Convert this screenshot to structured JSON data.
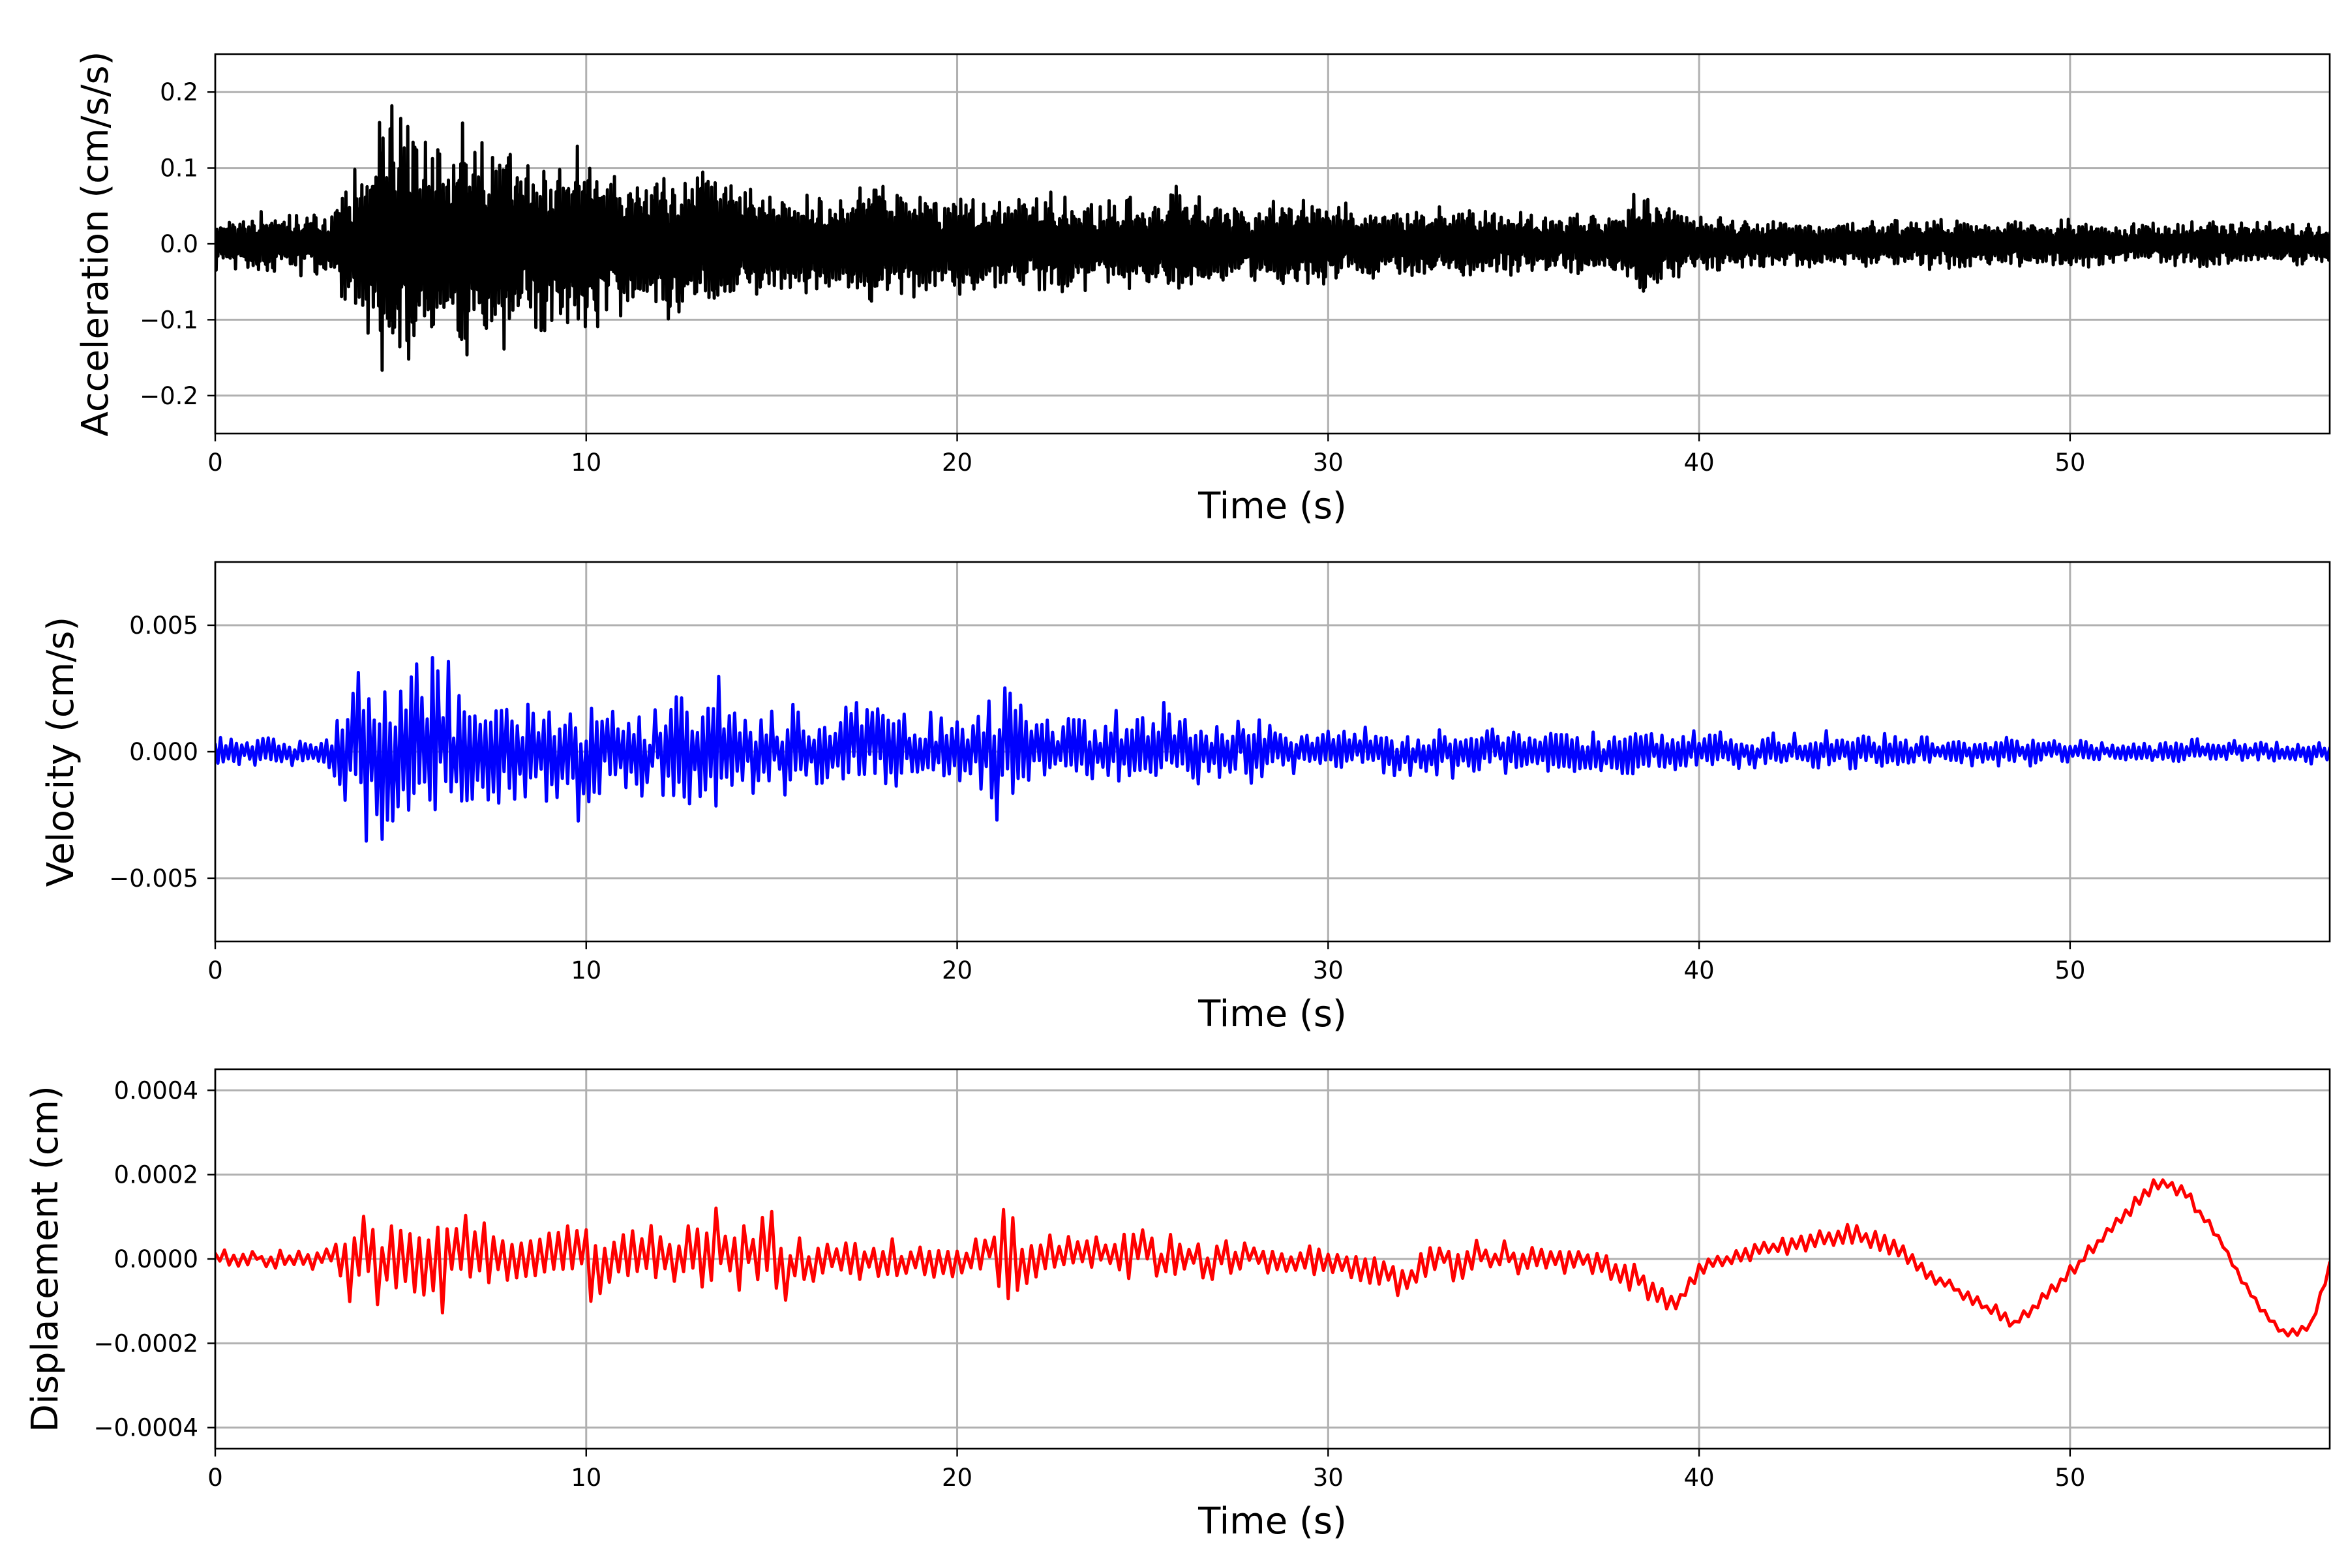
{
  "chart_data": [
    {
      "type": "line",
      "xlabel": "Time (s)",
      "ylabel": "Acceleration (cm/s/s)",
      "xlim": [
        0,
        57
      ],
      "ylim": [
        -0.25,
        0.25
      ],
      "xticks": [
        0,
        10,
        20,
        30,
        40,
        50
      ],
      "yticks": [
        -0.2,
        -0.1,
        0.0,
        0.1,
        0.2
      ],
      "xtick_labels": [
        "0",
        "10",
        "20",
        "30",
        "40",
        "50"
      ],
      "ytick_labels": [
        "−0.2",
        "−0.1",
        "0.0",
        "0.1",
        "0.2"
      ],
      "grid": true,
      "color": "#000000",
      "series": [
        {
          "x": [
            0,
            1,
            2,
            3,
            3.8,
            4.2,
            4.45,
            4.6,
            5.0,
            5.4,
            5.8,
            6.3,
            6.9,
            7.5,
            8.0,
            8.6,
            9.2,
            9.6,
            10.0,
            10.6,
            11.3,
            12.0,
            12.8,
            13.4,
            14.0,
            15.0,
            16.0,
            17.0,
            17.8,
            18.5,
            19.0,
            20.0,
            21.0,
            22.0,
            23.0,
            24.0,
            25.0,
            25.8,
            27.0,
            28.0,
            29.0,
            29.8,
            31.0,
            32.0,
            33.0,
            34.0,
            35.0,
            36.0,
            37.0,
            38.0,
            38.5,
            38.7,
            40.0,
            42.0,
            44.0,
            46.0,
            48.0,
            50.0,
            52.0,
            54.0,
            56.0,
            57.0
          ],
          "amplitude": [
            0.04,
            0.045,
            0.045,
            0.045,
            0.11,
            0.14,
            0.22,
            0.2,
            0.18,
            0.19,
            0.18,
            0.17,
            0.18,
            0.15,
            0.14,
            0.13,
            0.12,
            0.14,
            0.12,
            0.12,
            0.11,
            0.1,
            0.1,
            0.11,
            0.08,
            0.08,
            0.07,
            0.07,
            0.1,
            0.08,
            0.07,
            0.07,
            0.07,
            0.07,
            0.08,
            0.06,
            0.07,
            0.08,
            0.06,
            0.055,
            0.065,
            0.06,
            0.05,
            0.045,
            0.05,
            0.05,
            0.045,
            0.04,
            0.045,
            0.05,
            0.09,
            0.07,
            0.04,
            0.035,
            0.035,
            0.035,
            0.035,
            0.035,
            0.03,
            0.035,
            0.03,
            0.03
          ]
        }
      ]
    },
    {
      "type": "line",
      "xlabel": "Time (s)",
      "ylabel": "Velocity (cm/s)",
      "xlim": [
        0,
        57
      ],
      "ylim": [
        -0.0075,
        0.0075
      ],
      "xticks": [
        0,
        10,
        20,
        30,
        40,
        50
      ],
      "yticks": [
        -0.005,
        0.0,
        0.005
      ],
      "xtick_labels": [
        "0",
        "10",
        "20",
        "30",
        "40",
        "50"
      ],
      "ytick_labels": [
        "−0.005",
        "0.000",
        "0.005"
      ],
      "grid": true,
      "color": "#0000ff",
      "series": [
        {
          "x": [
            0,
            1,
            2,
            3,
            3.7,
            4.0,
            4.4,
            4.8,
            5.2,
            5.8,
            6.4,
            7.0,
            7.8,
            8.6,
            9.5,
            10.0,
            11.0,
            12.0,
            13.0,
            13.4,
            14.0,
            15.0,
            15.5,
            16.5,
            17.5,
            18.5,
            19.5,
            20.5,
            21.4,
            22.0,
            23.0,
            24.0,
            25.0,
            25.6,
            27.0,
            28.0,
            29.0,
            30.0,
            31.0,
            32.0,
            33.0,
            34.0,
            36.0,
            38.0,
            40.0,
            42.0,
            44.0,
            46.0,
            48.0,
            50.0,
            52.0,
            54.0,
            56.0,
            57.0
          ],
          "amplitude": [
            0.0012,
            0.001,
            0.001,
            0.001,
            0.0058,
            0.0065,
            0.0068,
            0.0065,
            0.0063,
            0.006,
            0.0055,
            0.005,
            0.004,
            0.0038,
            0.0045,
            0.004,
            0.0035,
            0.0035,
            0.004,
            0.0055,
            0.0038,
            0.003,
            0.0035,
            0.0028,
            0.003,
            0.0028,
            0.0025,
            0.0028,
            0.0058,
            0.0032,
            0.0028,
            0.0025,
            0.0028,
            0.0032,
            0.0022,
            0.002,
            0.0018,
            0.0016,
            0.0016,
            0.0017,
            0.0018,
            0.0018,
            0.0016,
            0.0017,
            0.0014,
            0.0012,
            0.0014,
            0.0012,
            0.001,
            0.0009,
            0.0008,
            0.0008,
            0.0008,
            0.0007
          ]
        }
      ]
    },
    {
      "type": "line",
      "xlabel": "Time (s)",
      "ylabel": "Displacement (cm)",
      "xlim": [
        0,
        57
      ],
      "ylim": [
        -0.00045,
        0.00045
      ],
      "xticks": [
        0,
        10,
        20,
        30,
        40,
        50
      ],
      "yticks": [
        -0.0004,
        -0.0002,
        0.0,
        0.0002,
        0.0004
      ],
      "xtick_labels": [
        "0",
        "10",
        "20",
        "30",
        "40",
        "50"
      ],
      "ytick_labels": [
        "−0.0004",
        "−0.0002",
        "0.0000",
        "0.0002",
        "0.0004"
      ],
      "grid": true,
      "color": "#ff0000",
      "series": [
        {
          "x": [
            0,
            1,
            2,
            3,
            3.8,
            4.4,
            5.0,
            5.9,
            6.5,
            7.1,
            8.0,
            9.0,
            9.8,
            10.5,
            11.5,
            12.5,
            13.2,
            14.0,
            15.2,
            16.0,
            17.0,
            18.0,
            19.0,
            20.0,
            21.0,
            21.4,
            22.0,
            23.0,
            24.0,
            25.0,
            26.0,
            27.0,
            28.0,
            29.0,
            30.0,
            31.0,
            32.0,
            33.0,
            34.0,
            35.0,
            36.0,
            37.0,
            38.0,
            39.0,
            39.5,
            40.0,
            42.0,
            44.0,
            45.0,
            46.0,
            47.0,
            48.0,
            48.5,
            49.0,
            50.0,
            51.0,
            52.3,
            53.0,
            54.0,
            55.0,
            55.8,
            56.5,
            57.0
          ],
          "baseline": [
            0,
            0,
            0,
            0,
            0,
            0,
            0,
            0,
            0,
            0,
            0,
            0,
            0,
            0,
            0,
            0,
            0,
            0,
            0,
            0,
            0,
            0,
            0,
            0,
            3e-05,
            8e-05,
            0,
            0,
            0,
            0,
            0,
            0,
            0,
            0,
            0,
            -3e-05,
            -5e-05,
            0,
            0,
            0,
            0,
            0,
            -3e-05,
            -8e-05,
            -0.0001,
            -2e-05,
            3e-05,
            6e-05,
            4e-05,
            -2e-05,
            -8e-05,
            -0.00013,
            -0.00015,
            -0.00012,
            -3e-05,
            6e-05,
            0.00018,
            0.00017,
            5e-05,
            -0.0001,
            -0.00018,
            -0.00016,
            -2e-05
          ],
          "amplitude": [
            4e-05,
            4e-05,
            5e-05,
            6e-05,
            0.00024,
            0.00028,
            0.00026,
            0.00028,
            0.00024,
            0.00022,
            0.00018,
            0.00018,
            0.00025,
            0.0002,
            0.00017,
            0.00016,
            0.00025,
            0.0002,
            0.00022,
            0.00014,
            0.00012,
            0.00013,
            0.00011,
            0.0001,
            0.00012,
            0.00033,
            0.00013,
            0.00013,
            0.00012,
            0.00014,
            0.00011,
            0.0001,
            9e-05,
            0.0001,
            0.0001,
            9e-05,
            9e-05,
            0.00011,
            0.00011,
            9e-05,
            8e-05,
            8e-05,
            8e-05,
            8e-05,
            6e-05,
            5e-05,
            5e-05,
            6e-05,
            6e-05,
            5e-05,
            4e-05,
            4e-05,
            4e-05,
            4e-05,
            4e-05,
            4e-05,
            5e-05,
            4e-05,
            3e-05,
            3e-05,
            3e-05,
            3e-05,
            3e-05
          ]
        }
      ]
    }
  ]
}
